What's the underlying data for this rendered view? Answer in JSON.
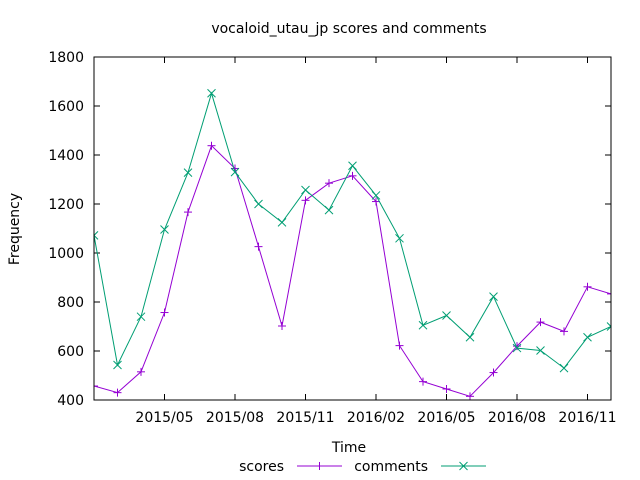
{
  "chart_data": {
    "type": "line",
    "title": "vocaloid_utau_jp scores and comments",
    "xlabel": "Time",
    "ylabel": "Frequency",
    "ylim": [
      400,
      1800
    ],
    "yticks": [
      400,
      600,
      800,
      1000,
      1200,
      1400,
      1600,
      1800
    ],
    "xlim": [
      "2015-02",
      "2016-12"
    ],
    "xticks": [
      {
        "x": "2015-05",
        "label": "2015/05"
      },
      {
        "x": "2015-08",
        "label": "2015/08"
      },
      {
        "x": "2015-11",
        "label": "2015/11"
      },
      {
        "x": "2016-02",
        "label": "2016/02"
      },
      {
        "x": "2016-05",
        "label": "2016/05"
      },
      {
        "x": "2016-08",
        "label": "2016/08"
      },
      {
        "x": "2016-11",
        "label": "2016/11"
      }
    ],
    "x": [
      "2015-02",
      "2015-03",
      "2015-04",
      "2015-05",
      "2015-06",
      "2015-07",
      "2015-08",
      "2015-09",
      "2015-10",
      "2015-11",
      "2015-12",
      "2016-01",
      "2016-02",
      "2016-03",
      "2016-04",
      "2016-05",
      "2016-06",
      "2016-07",
      "2016-08",
      "2016-09",
      "2016-10",
      "2016-11",
      "2016-12"
    ],
    "series": [
      {
        "name": "scores",
        "color": "#9400d3",
        "marker": "plus",
        "values": [
          457,
          430,
          515,
          757,
          1167,
          1438,
          1345,
          1026,
          702,
          1215,
          1285,
          1315,
          1210,
          622,
          475,
          445,
          415,
          512,
          620,
          718,
          680,
          862,
          833
        ]
      },
      {
        "name": "comments",
        "color": "#009e73",
        "marker": "cross",
        "values": [
          1072,
          543,
          740,
          1096,
          1328,
          1652,
          1330,
          1200,
          1125,
          1257,
          1175,
          1356,
          1235,
          1060,
          705,
          745,
          656,
          822,
          612,
          602,
          530,
          656,
          700
        ]
      }
    ],
    "grid": false,
    "legend_position": "bottom"
  }
}
